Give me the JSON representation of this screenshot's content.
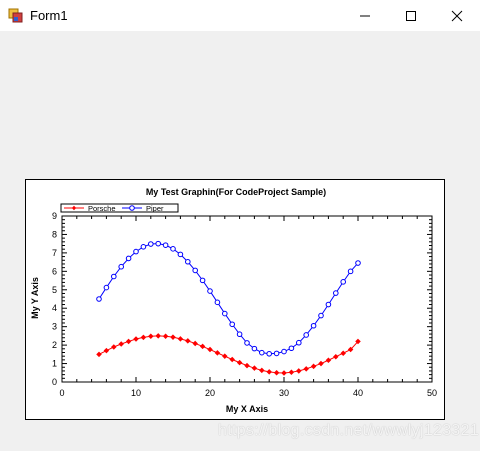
{
  "window": {
    "title": "Form1",
    "icon": "winforms-app-icon",
    "controls": [
      "minimize-icon",
      "maximize-icon",
      "close-icon"
    ]
  },
  "watermark": "https://blog.csdn.net/wwwlyj123321",
  "chart_data": {
    "type": "line",
    "title": "My Test Graphin(For CodeProject Sample)",
    "xlabel": "My X Axis",
    "ylabel": "My Y Axis",
    "xlim": [
      0,
      50
    ],
    "ylim": [
      0,
      9
    ],
    "xticks": [
      0,
      10,
      20,
      30,
      40,
      50
    ],
    "yticks": [
      0,
      1,
      2,
      3,
      4,
      5,
      6,
      7,
      8,
      9
    ],
    "grid": false,
    "legend_position": "top-left",
    "series": [
      {
        "name": "Porsche",
        "color": "#ff0000",
        "marker": "diamond",
        "x": [
          5,
          6,
          7,
          8,
          9,
          10,
          11,
          12,
          13,
          14,
          15,
          16,
          17,
          18,
          19,
          20,
          21,
          22,
          23,
          24,
          25,
          26,
          27,
          28,
          29,
          30,
          31,
          32,
          33,
          34,
          35,
          36,
          37,
          38,
          39,
          40
        ],
        "values": [
          1.5,
          1.7,
          1.9,
          2.06,
          2.2,
          2.33,
          2.42,
          2.48,
          2.5,
          2.48,
          2.43,
          2.34,
          2.23,
          2.09,
          1.93,
          1.76,
          1.58,
          1.4,
          1.22,
          1.05,
          0.89,
          0.75,
          0.63,
          0.55,
          0.5,
          0.49,
          0.53,
          0.6,
          0.71,
          0.85,
          1.0,
          1.18,
          1.37,
          1.56,
          1.76,
          2.2
        ]
      },
      {
        "name": "Piper",
        "color": "#0000ff",
        "marker": "circle",
        "x": [
          5,
          6,
          7,
          8,
          9,
          10,
          11,
          12,
          13,
          14,
          15,
          16,
          17,
          18,
          19,
          20,
          21,
          22,
          23,
          24,
          25,
          26,
          27,
          28,
          29,
          30,
          31,
          32,
          33,
          34,
          35,
          36,
          37,
          38,
          39,
          40
        ],
        "values": [
          4.5,
          5.12,
          5.72,
          6.25,
          6.7,
          7.07,
          7.33,
          7.48,
          7.5,
          7.42,
          7.22,
          6.92,
          6.52,
          6.05,
          5.51,
          4.93,
          4.32,
          3.71,
          3.13,
          2.59,
          2.12,
          1.81,
          1.59,
          1.53,
          1.55,
          1.65,
          1.83,
          2.13,
          2.55,
          3.05,
          3.6,
          4.2,
          4.82,
          5.43,
          6.0,
          6.45
        ]
      }
    ]
  }
}
